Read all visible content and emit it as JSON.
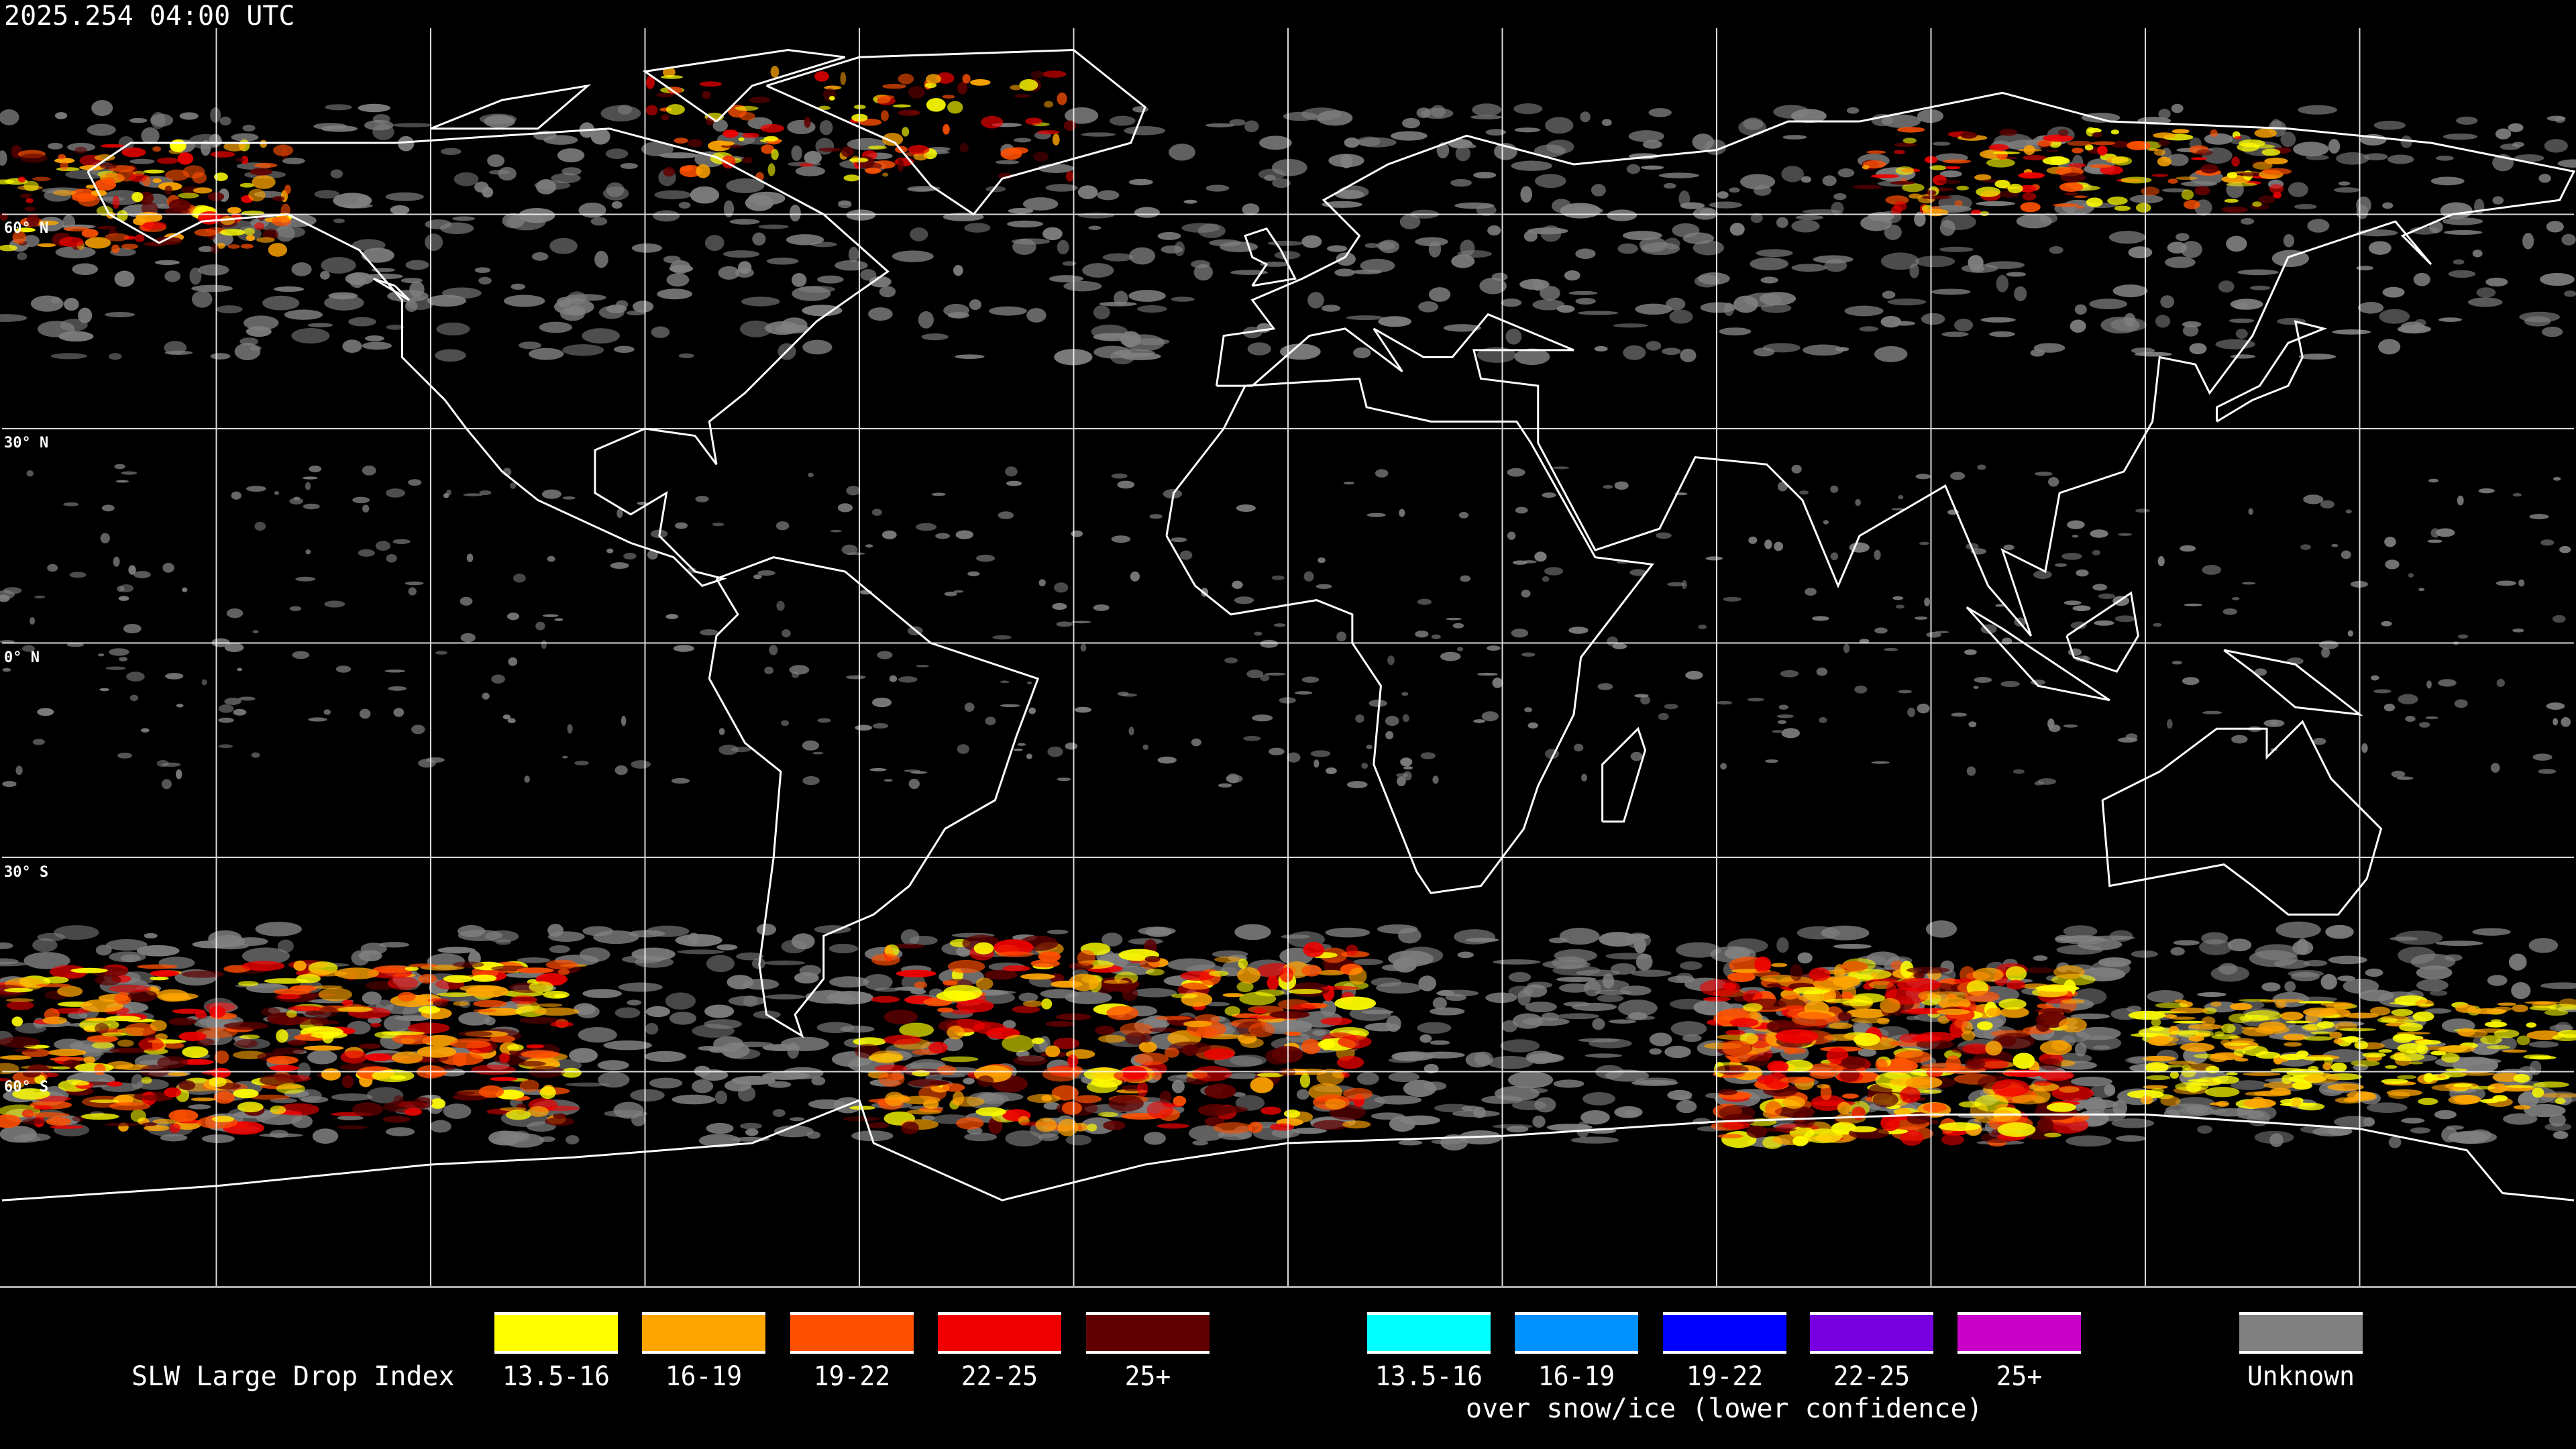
{
  "timestamp": "2025.254 04:00 UTC",
  "map": {
    "projection": "equirectangular",
    "grid_spacing_degrees": 30,
    "lat_labels": [
      "60° N",
      "30° N",
      "0° N",
      "30° S",
      "60° S"
    ],
    "background": "#000000",
    "coastline_color": "#ffffff",
    "grid_color": "#ffffff"
  },
  "legend": {
    "title": "SLW Large Drop Index",
    "normal": [
      {
        "label": "13.5-16",
        "color": "#ffff00"
      },
      {
        "label": "16-19",
        "color": "#ffa500"
      },
      {
        "label": "19-22",
        "color": "#ff5000"
      },
      {
        "label": "22-25",
        "color": "#f00000"
      },
      {
        "label": "25+",
        "color": "#600000"
      }
    ],
    "snow_ice": [
      {
        "label": "13.5-16",
        "color": "#00ffff"
      },
      {
        "label": "16-19",
        "color": "#0090ff"
      },
      {
        "label": "19-22",
        "color": "#0000ff"
      },
      {
        "label": "22-25",
        "color": "#7800e0"
      },
      {
        "label": "25+",
        "color": "#c800c8"
      }
    ],
    "snow_ice_caption": "over snow/ice (lower confidence)",
    "unknown": {
      "label": "Unknown",
      "color": "#808080"
    }
  }
}
